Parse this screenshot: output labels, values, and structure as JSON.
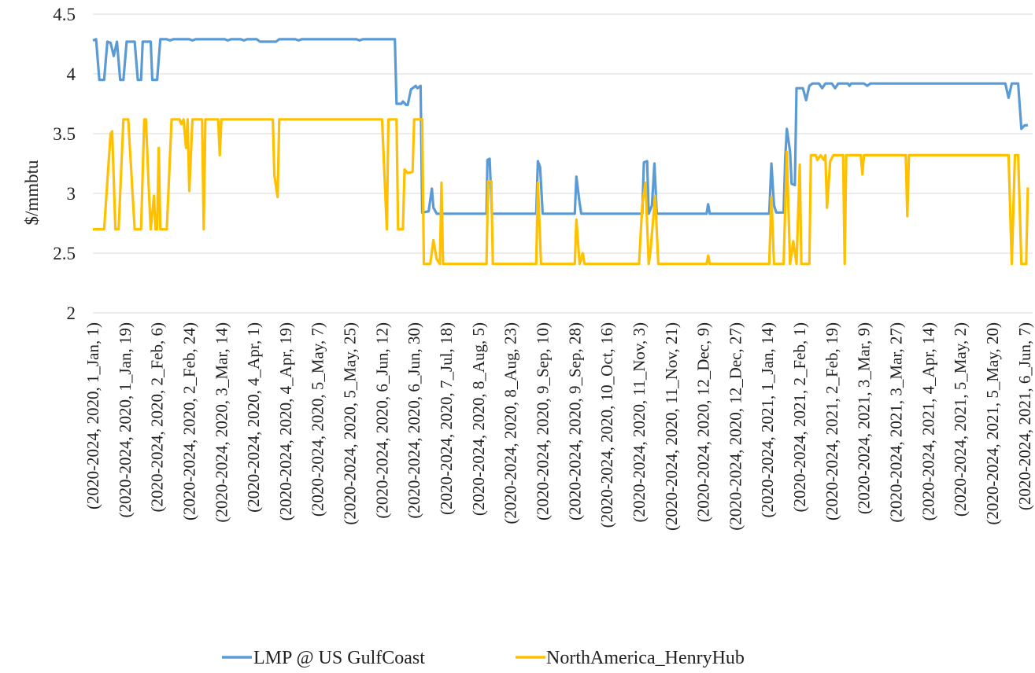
{
  "chart_data": {
    "type": "line",
    "title": "",
    "xlabel": "",
    "ylabel": "$/mmbtu",
    "ylim": [
      2,
      4.5
    ],
    "yticks": [
      "2",
      "2.5",
      "3",
      "3.5",
      "4",
      "4.5"
    ],
    "grid": true,
    "legend_position": "bottom",
    "x_tick_labels": [
      "(2020-2024, 2020, 1_Jan, 1)",
      "(2020-2024, 2020, 1_Jan, 19)",
      "(2020-2024, 2020, 2_Feb, 6)",
      "(2020-2024, 2020, 2_Feb, 24)",
      "(2020-2024, 2020, 3_Mar, 14)",
      "(2020-2024, 2020, 4_Apr, 1)",
      "(2020-2024, 2020, 4_Apr, 19)",
      "(2020-2024, 2020, 5_May, 7)",
      "(2020-2024, 2020, 5_May, 25)",
      "(2020-2024, 2020, 6_Jun, 12)",
      "(2020-2024, 2020, 6_Jun, 30)",
      "(2020-2024, 2020, 7_Jul, 18)",
      "(2020-2024, 2020, 8_Aug, 5)",
      "(2020-2024, 2020, 8_Aug, 23)",
      "(2020-2024, 2020, 9_Sep, 10)",
      "(2020-2024, 2020, 9_Sep, 28)",
      "(2020-2024, 2020, 10_Oct, 16)",
      "(2020-2024, 2020, 11_Nov, 3)",
      "(2020-2024, 2020, 11_Nov, 21)",
      "(2020-2024, 2020, 12_Dec, 9)",
      "(2020-2024, 2020, 12_Dec, 27)",
      "(2020-2024, 2021, 1_Jan, 14)",
      "(2020-2024, 2021, 2_Feb, 1)",
      "(2020-2024, 2021, 2_Feb, 19)",
      "(2020-2024, 2021, 3_Mar, 9)",
      "(2020-2024, 2021, 3_Mar, 27)",
      "(2020-2024, 2021, 4_Apr, 14)",
      "(2020-2024, 2021, 5_May, 2)",
      "(2020-2024, 2021, 5_May, 20)",
      "(2020-2024, 2021, 6_Jun, 7)"
    ],
    "series": [
      {
        "name": "LMP @ US GulfCoast",
        "color": "#5b9bd5",
        "points": [
          [
            0,
            4.28
          ],
          [
            0.1,
            4.29
          ],
          [
            0.2,
            3.95
          ],
          [
            0.35,
            3.95
          ],
          [
            0.45,
            4.27
          ],
          [
            0.55,
            4.26
          ],
          [
            0.65,
            4.15
          ],
          [
            0.75,
            4.27
          ],
          [
            0.85,
            3.95
          ],
          [
            0.95,
            3.95
          ],
          [
            1.05,
            4.27
          ],
          [
            1.3,
            4.27
          ],
          [
            1.4,
            3.95
          ],
          [
            1.5,
            3.95
          ],
          [
            1.55,
            4.27
          ],
          [
            1.8,
            4.27
          ],
          [
            1.85,
            3.95
          ],
          [
            2.0,
            3.95
          ],
          [
            2.1,
            4.29
          ],
          [
            2.3,
            4.29
          ],
          [
            2.4,
            4.28
          ],
          [
            2.5,
            4.29
          ],
          [
            3.0,
            4.29
          ],
          [
            3.1,
            4.28
          ],
          [
            3.2,
            4.29
          ],
          [
            4.1,
            4.29
          ],
          [
            4.2,
            4.28
          ],
          [
            4.3,
            4.29
          ],
          [
            4.6,
            4.29
          ],
          [
            4.7,
            4.28
          ],
          [
            4.8,
            4.29
          ],
          [
            5.1,
            4.29
          ],
          [
            5.2,
            4.27
          ],
          [
            5.7,
            4.27
          ],
          [
            5.8,
            4.29
          ],
          [
            6.3,
            4.29
          ],
          [
            6.4,
            4.28
          ],
          [
            6.5,
            4.29
          ],
          [
            8.2,
            4.29
          ],
          [
            8.3,
            4.28
          ],
          [
            8.4,
            4.29
          ],
          [
            9.4,
            4.29
          ],
          [
            9.45,
            3.75
          ],
          [
            9.6,
            3.75
          ],
          [
            9.65,
            3.77
          ],
          [
            9.75,
            3.74
          ],
          [
            9.8,
            3.74
          ],
          [
            9.9,
            3.87
          ],
          [
            10.05,
            3.9
          ],
          [
            10.1,
            3.88
          ],
          [
            10.2,
            3.9
          ],
          [
            10.25,
            2.84
          ],
          [
            10.45,
            2.85
          ],
          [
            10.55,
            3.04
          ],
          [
            10.6,
            2.88
          ],
          [
            10.7,
            2.83
          ],
          [
            11.5,
            2.83
          ],
          [
            12.25,
            2.83
          ],
          [
            12.28,
            3.28
          ],
          [
            12.35,
            3.29
          ],
          [
            12.42,
            2.83
          ],
          [
            13.8,
            2.83
          ],
          [
            13.85,
            3.27
          ],
          [
            13.92,
            3.22
          ],
          [
            14.0,
            2.83
          ],
          [
            15.0,
            2.83
          ],
          [
            15.05,
            3.14
          ],
          [
            15.15,
            2.92
          ],
          [
            15.2,
            2.83
          ],
          [
            16.0,
            2.83
          ],
          [
            17.1,
            2.83
          ],
          [
            17.15,
            3.26
          ],
          [
            17.25,
            3.27
          ],
          [
            17.3,
            2.83
          ],
          [
            17.4,
            2.9
          ],
          [
            17.48,
            3.25
          ],
          [
            17.55,
            2.83
          ],
          [
            19.1,
            2.83
          ],
          [
            19.15,
            2.91
          ],
          [
            19.2,
            2.83
          ],
          [
            20.0,
            2.83
          ],
          [
            21.05,
            2.83
          ],
          [
            21.12,
            3.25
          ],
          [
            21.2,
            2.9
          ],
          [
            21.27,
            2.84
          ],
          [
            21.5,
            2.84
          ],
          [
            21.55,
            3.3
          ],
          [
            21.6,
            3.54
          ],
          [
            21.7,
            3.35
          ],
          [
            21.75,
            3.08
          ],
          [
            21.85,
            3.07
          ],
          [
            21.9,
            3.88
          ],
          [
            22.1,
            3.88
          ],
          [
            22.2,
            3.78
          ],
          [
            22.3,
            3.9
          ],
          [
            22.4,
            3.92
          ],
          [
            22.6,
            3.92
          ],
          [
            22.7,
            3.88
          ],
          [
            22.8,
            3.92
          ],
          [
            23.0,
            3.92
          ],
          [
            23.1,
            3.88
          ],
          [
            23.2,
            3.92
          ],
          [
            23.5,
            3.92
          ],
          [
            23.55,
            3.9
          ],
          [
            23.6,
            3.92
          ],
          [
            24.0,
            3.92
          ],
          [
            24.1,
            3.9
          ],
          [
            24.2,
            3.92
          ],
          [
            28.4,
            3.92
          ],
          [
            28.5,
            3.8
          ],
          [
            28.6,
            3.92
          ],
          [
            28.8,
            3.92
          ],
          [
            28.9,
            3.54
          ],
          [
            29.0,
            3.57
          ],
          [
            29.1,
            3.57
          ]
        ]
      },
      {
        "name": "NorthAmerica_HenryHub",
        "color": "#ffc000",
        "points": [
          [
            0,
            2.7
          ],
          [
            0.35,
            2.7
          ],
          [
            0.55,
            3.5
          ],
          [
            0.6,
            3.52
          ],
          [
            0.7,
            2.7
          ],
          [
            0.8,
            2.7
          ],
          [
            0.95,
            3.62
          ],
          [
            1.1,
            3.62
          ],
          [
            1.3,
            2.7
          ],
          [
            1.5,
            2.7
          ],
          [
            1.6,
            3.62
          ],
          [
            1.65,
            3.62
          ],
          [
            1.75,
            2.98
          ],
          [
            1.8,
            2.7
          ],
          [
            1.9,
            2.98
          ],
          [
            1.95,
            2.7
          ],
          [
            2.0,
            2.7
          ],
          [
            2.05,
            3.38
          ],
          [
            2.1,
            2.7
          ],
          [
            2.3,
            2.7
          ],
          [
            2.45,
            3.62
          ],
          [
            2.7,
            3.62
          ],
          [
            2.75,
            3.58
          ],
          [
            2.82,
            3.62
          ],
          [
            2.9,
            3.38
          ],
          [
            2.95,
            3.62
          ],
          [
            3.0,
            3.02
          ],
          [
            3.1,
            3.62
          ],
          [
            3.4,
            3.62
          ],
          [
            3.45,
            2.7
          ],
          [
            3.5,
            3.62
          ],
          [
            3.9,
            3.62
          ],
          [
            3.95,
            3.32
          ],
          [
            4.0,
            3.62
          ],
          [
            5.6,
            3.62
          ],
          [
            5.65,
            3.15
          ],
          [
            5.75,
            2.97
          ],
          [
            5.8,
            3.62
          ],
          [
            9.0,
            3.62
          ],
          [
            9.15,
            2.7
          ],
          [
            9.2,
            3.62
          ],
          [
            9.45,
            3.62
          ],
          [
            9.5,
            2.7
          ],
          [
            9.65,
            2.7
          ],
          [
            9.7,
            3.2
          ],
          [
            9.8,
            3.17
          ],
          [
            9.95,
            3.18
          ],
          [
            10.0,
            3.62
          ],
          [
            10.25,
            3.62
          ],
          [
            10.3,
            2.41
          ],
          [
            10.5,
            2.41
          ],
          [
            10.6,
            2.61
          ],
          [
            10.7,
            2.45
          ],
          [
            10.8,
            2.41
          ],
          [
            10.85,
            3.09
          ],
          [
            10.9,
            2.41
          ],
          [
            12.25,
            2.41
          ],
          [
            12.3,
            3.1
          ],
          [
            12.4,
            3.1
          ],
          [
            12.45,
            2.41
          ],
          [
            13.8,
            2.41
          ],
          [
            13.85,
            3.09
          ],
          [
            13.95,
            2.41
          ],
          [
            15.0,
            2.41
          ],
          [
            15.05,
            2.78
          ],
          [
            15.15,
            2.41
          ],
          [
            15.25,
            2.5
          ],
          [
            15.3,
            2.41
          ],
          [
            17.0,
            2.41
          ],
          [
            17.1,
            2.9
          ],
          [
            17.2,
            3.09
          ],
          [
            17.3,
            2.41
          ],
          [
            17.35,
            2.5
          ],
          [
            17.5,
            2.98
          ],
          [
            17.6,
            2.41
          ],
          [
            19.1,
            2.41
          ],
          [
            19.15,
            2.48
          ],
          [
            19.2,
            2.41
          ],
          [
            21.05,
            2.41
          ],
          [
            21.12,
            2.97
          ],
          [
            21.2,
            2.41
          ],
          [
            21.5,
            2.41
          ],
          [
            21.6,
            3.35
          ],
          [
            21.7,
            2.41
          ],
          [
            21.8,
            2.6
          ],
          [
            21.9,
            2.41
          ],
          [
            22.0,
            3.24
          ],
          [
            22.05,
            2.41
          ],
          [
            22.3,
            2.41
          ],
          [
            22.35,
            3.32
          ],
          [
            22.5,
            3.32
          ],
          [
            22.55,
            3.28
          ],
          [
            22.65,
            3.32
          ],
          [
            22.75,
            3.28
          ],
          [
            22.8,
            3.32
          ],
          [
            22.85,
            2.88
          ],
          [
            22.95,
            3.27
          ],
          [
            23.05,
            3.32
          ],
          [
            23.35,
            3.32
          ],
          [
            23.4,
            2.41
          ],
          [
            23.45,
            3.32
          ],
          [
            23.9,
            3.32
          ],
          [
            23.95,
            3.16
          ],
          [
            24.0,
            3.32
          ],
          [
            25.3,
            3.32
          ],
          [
            25.35,
            2.81
          ],
          [
            25.4,
            3.32
          ],
          [
            28.5,
            3.32
          ],
          [
            28.6,
            2.41
          ],
          [
            28.7,
            3.32
          ],
          [
            28.8,
            3.32
          ],
          [
            28.9,
            2.41
          ],
          [
            29.05,
            2.41
          ],
          [
            29.1,
            3.05
          ]
        ]
      }
    ]
  }
}
